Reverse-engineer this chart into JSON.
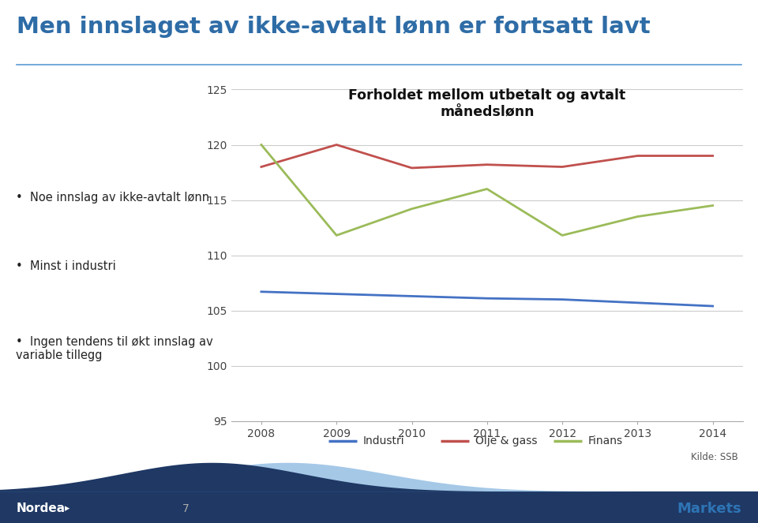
{
  "title_main": "Men innslaget av ikke-avtalt lønn er fortsatt lavt",
  "chart_title": "Forholdet mellom utbetalt og avtalt\nmånedslønn",
  "years": [
    2008,
    2009,
    2010,
    2011,
    2012,
    2013,
    2014
  ],
  "industri": [
    106.7,
    106.5,
    106.3,
    106.1,
    106.0,
    105.7,
    105.4
  ],
  "olje_gass": [
    118.0,
    120.0,
    117.9,
    118.2,
    118.0,
    119.0,
    119.0
  ],
  "finans": [
    120.0,
    111.8,
    114.2,
    116.0,
    111.8,
    113.5,
    114.5
  ],
  "industri_color": "#4472C4",
  "olje_gass_color": "#C0504D",
  "finans_color": "#9BBB59",
  "ylim": [
    95,
    126
  ],
  "yticks": [
    95,
    100,
    105,
    110,
    115,
    120,
    125
  ],
  "source_text": "Kilde: SSB",
  "bullet_points": [
    "Noe innslag av ikke-avtalt lønn",
    "Minst i industri",
    "Ingen tendens til økt innslag av\nvariable tillegg"
  ],
  "page_number": "7",
  "header_line_color": "#5B9BD5",
  "title_color": "#2E6CA6",
  "footer_bg_color": "#1F3864",
  "footer_wave_color": "#3A6EA8",
  "markets_color": "#2E74B5"
}
